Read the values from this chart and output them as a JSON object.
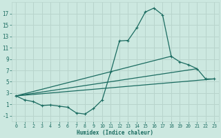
{
  "background_color": "#cce8e0",
  "grid_color": "#b8d4cc",
  "line_color": "#1a6b60",
  "xlabel": "Humidex (Indice chaleur)",
  "xlim": [
    -0.5,
    23.5
  ],
  "ylim": [
    -2,
    19
  ],
  "xticks": [
    0,
    1,
    2,
    3,
    4,
    5,
    6,
    7,
    8,
    9,
    10,
    11,
    12,
    13,
    14,
    15,
    16,
    17,
    18,
    19,
    20,
    21,
    22,
    23
  ],
  "yticks": [
    -1,
    1,
    3,
    5,
    7,
    9,
    11,
    13,
    15,
    17
  ],
  "main_series": {
    "x": [
      0,
      1,
      2,
      3,
      4,
      5,
      6,
      7,
      8,
      9,
      10,
      11,
      12,
      13,
      14,
      15,
      16,
      17,
      18,
      19,
      20,
      21,
      22,
      23
    ],
    "y": [
      2.5,
      1.8,
      1.5,
      0.8,
      0.9,
      0.7,
      0.5,
      -0.5,
      -0.7,
      0.3,
      1.8,
      6.8,
      12.2,
      12.3,
      14.5,
      17.3,
      18.0,
      16.8,
      9.5,
      8.5,
      8.0,
      7.3,
      5.5,
      5.5
    ]
  },
  "line_series": [
    {
      "x": [
        0,
        23
      ],
      "y": [
        2.5,
        5.5
      ]
    },
    {
      "x": [
        0,
        21
      ],
      "y": [
        2.5,
        7.3
      ]
    },
    {
      "x": [
        0,
        18
      ],
      "y": [
        2.5,
        9.5
      ]
    }
  ],
  "figsize": [
    3.2,
    2.0
  ],
  "dpi": 100
}
